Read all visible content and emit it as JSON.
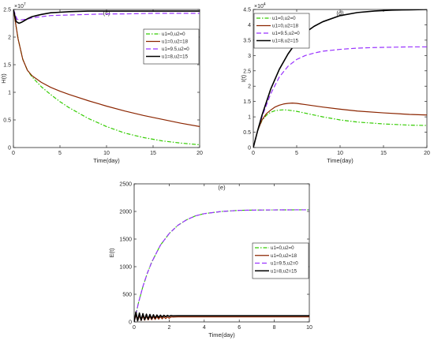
{
  "chart_data": [
    {
      "type": "line",
      "panel_label": "(c)",
      "title": "",
      "xlabel": "Time(day)",
      "ylabel": "H(t)",
      "exponent_label": "×10",
      "exponent_power": "7",
      "xlim": [
        0,
        20
      ],
      "ylim": [
        0,
        2.5
      ],
      "y_scale": 10000000,
      "xticks": [
        "0",
        "5",
        "10",
        "15",
        "20"
      ],
      "yticks": [
        "0",
        "0.5",
        "1",
        "1.5",
        "2",
        "2.5"
      ],
      "grid": false,
      "legend_position": "right",
      "legend": [
        "u1=0,u2=0",
        "u1=0,u2=18",
        "u1=9.5,u2=0",
        "u1=8,u2=15"
      ],
      "series": [
        {
          "name": "u1=0,u2=0",
          "color": "#33cc00",
          "style": "dashdot",
          "x": [
            0,
            0.5,
            1,
            1.5,
            2,
            3,
            4,
            5,
            6,
            8,
            10,
            12,
            14,
            16,
            18,
            20
          ],
          "values": [
            2.5,
            1.97,
            1.6,
            1.4,
            1.28,
            1.1,
            0.96,
            0.83,
            0.72,
            0.53,
            0.38,
            0.26,
            0.18,
            0.12,
            0.08,
            0.05
          ]
        },
        {
          "name": "u1=0,u2=18",
          "color": "#8b2500",
          "style": "solid",
          "x": [
            0,
            0.5,
            1,
            1.5,
            2,
            3,
            4,
            5,
            6,
            8,
            10,
            12,
            14,
            16,
            18,
            20
          ],
          "values": [
            2.5,
            1.97,
            1.6,
            1.4,
            1.3,
            1.18,
            1.09,
            1.02,
            0.96,
            0.85,
            0.75,
            0.66,
            0.58,
            0.51,
            0.44,
            0.38
          ]
        },
        {
          "name": "u1=9.5,u2=0",
          "color": "#9933ff",
          "style": "dashed",
          "x": [
            0,
            0.4,
            0.8,
            1.2,
            1.6,
            2,
            3,
            4,
            6,
            8,
            10,
            12,
            15,
            18,
            20
          ],
          "values": [
            2.5,
            2.32,
            2.31,
            2.32,
            2.33,
            2.35,
            2.37,
            2.39,
            2.4,
            2.41,
            2.42,
            2.42,
            2.43,
            2.43,
            2.43
          ]
        },
        {
          "name": "u1=8,u2=15",
          "color": "#000000",
          "style": "solid",
          "x": [
            0,
            0.3,
            0.6,
            0.9,
            1.2,
            1.6,
            2,
            2.5,
            3,
            4,
            5,
            6,
            8,
            10,
            12,
            15,
            18,
            20
          ],
          "values": [
            2.5,
            2.28,
            2.25,
            2.27,
            2.3,
            2.34,
            2.37,
            2.39,
            2.41,
            2.44,
            2.45,
            2.46,
            2.47,
            2.47,
            2.47,
            2.47,
            2.47,
            2.47
          ]
        }
      ]
    },
    {
      "type": "line",
      "panel_label": "(d)",
      "title": "",
      "xlabel": "Time(day)",
      "ylabel": "I(t)",
      "exponent_label": "×10",
      "exponent_power": "4",
      "xlim": [
        0,
        20
      ],
      "ylim": [
        0,
        4.5
      ],
      "y_scale": 10000,
      "xticks": [
        "0",
        "5",
        "10",
        "15",
        "20"
      ],
      "yticks": [
        "0",
        "0.5",
        "1",
        "1.5",
        "2",
        "2.5",
        "3",
        "3.5",
        "4",
        "4.5"
      ],
      "grid": false,
      "legend_position": "top-left",
      "legend": [
        "u1=0,u2=0",
        "u1=0,u2=18",
        "u1=9.5,u2=0",
        "u1=8,u2=15"
      ],
      "series": [
        {
          "name": "u1=0,u2=0",
          "color": "#33cc00",
          "style": "dashdot",
          "x": [
            0,
            0.5,
            1,
            1.5,
            2,
            2.5,
            3,
            3.5,
            4,
            5,
            6,
            8,
            10,
            12,
            15,
            18,
            20
          ],
          "values": [
            0,
            0.55,
            0.88,
            1.05,
            1.15,
            1.2,
            1.22,
            1.23,
            1.22,
            1.18,
            1.12,
            1.0,
            0.9,
            0.83,
            0.77,
            0.73,
            0.72
          ]
        },
        {
          "name": "u1=0,u2=18",
          "color": "#8b2500",
          "style": "solid",
          "x": [
            0,
            0.5,
            1,
            1.5,
            2,
            2.5,
            3,
            3.5,
            4,
            4.5,
            5,
            6,
            8,
            10,
            12,
            15,
            18,
            20
          ],
          "values": [
            0,
            0.55,
            0.9,
            1.1,
            1.22,
            1.32,
            1.38,
            1.42,
            1.44,
            1.45,
            1.44,
            1.4,
            1.32,
            1.25,
            1.19,
            1.13,
            1.08,
            1.06
          ]
        },
        {
          "name": "u1=9.5,u2=0",
          "color": "#9933ff",
          "style": "dashed",
          "x": [
            0,
            0.5,
            1,
            2,
            3,
            4,
            5,
            6,
            7,
            8,
            10,
            12,
            14,
            16,
            18,
            20
          ],
          "values": [
            0,
            0.55,
            1.0,
            1.75,
            2.3,
            2.65,
            2.87,
            3.0,
            3.08,
            3.14,
            3.2,
            3.24,
            3.26,
            3.27,
            3.28,
            3.28
          ]
        },
        {
          "name": "u1=8,u2=15",
          "color": "#000000",
          "style": "solid",
          "x": [
            0,
            0.5,
            1,
            2,
            3,
            4,
            5,
            6,
            7,
            8,
            10,
            12,
            14,
            16,
            18,
            20
          ],
          "values": [
            0,
            0.55,
            1.05,
            1.9,
            2.55,
            3.05,
            3.45,
            3.75,
            3.95,
            4.1,
            4.3,
            4.4,
            4.45,
            4.48,
            4.49,
            4.5
          ]
        }
      ]
    },
    {
      "type": "line",
      "panel_label": "(e)",
      "title": "",
      "xlabel": "Time(day)",
      "ylabel": "E(t)",
      "exponent_label": "",
      "exponent_power": "",
      "xlim": [
        0,
        10
      ],
      "ylim": [
        0,
        2500
      ],
      "y_scale": 1,
      "xticks": [
        "0",
        "2",
        "4",
        "6",
        "8",
        "10"
      ],
      "yticks": [
        "0",
        "500",
        "1000",
        "1500",
        "2000",
        "2500"
      ],
      "grid": false,
      "legend_position": "right",
      "legend": [
        "u1=0,u2=0",
        "u1=0,u2=18",
        "u1=9.5,u2=0",
        "u1=8,u2=15"
      ],
      "series": [
        {
          "name": "u1=0,u2=0",
          "color": "#33cc00",
          "style": "dashdot",
          "x": [
            0,
            0.25,
            0.5,
            0.75,
            1,
            1.5,
            2,
            2.5,
            3,
            3.5,
            4,
            5,
            6,
            7,
            8,
            9,
            10
          ],
          "values": [
            0,
            350,
            640,
            880,
            1080,
            1390,
            1600,
            1750,
            1850,
            1920,
            1960,
            2000,
            2020,
            2025,
            2028,
            2029,
            2030
          ]
        },
        {
          "name": "u1=0,u2=18",
          "color": "#8b2500",
          "style": "solid",
          "x": [
            0,
            0.1,
            0.2,
            0.3,
            0.4,
            0.5,
            0.6,
            0.7,
            0.8,
            0.9,
            1.0,
            1.1,
            1.2,
            1.3,
            1.4,
            1.5,
            1.6,
            1.7,
            1.8,
            1.9,
            2.0,
            2.1,
            2.2,
            2.5,
            3,
            4,
            5,
            6,
            7,
            8,
            9,
            10
          ],
          "values": [
            0,
            120,
            20,
            110,
            25,
            105,
            30,
            100,
            35,
            98,
            40,
            96,
            45,
            95,
            50,
            94,
            55,
            93,
            60,
            92,
            65,
            91,
            88,
            90,
            90,
            90,
            90,
            90,
            90,
            90,
            90,
            90
          ]
        },
        {
          "name": "u1=9.5,u2=0",
          "color": "#9933ff",
          "style": "dashed",
          "x": [
            0,
            0.25,
            0.5,
            0.75,
            1,
            1.5,
            2,
            2.5,
            3,
            3.5,
            4,
            5,
            6,
            7,
            8,
            9,
            10
          ],
          "values": [
            0,
            350,
            640,
            880,
            1080,
            1390,
            1600,
            1750,
            1850,
            1920,
            1960,
            2000,
            2020,
            2025,
            2028,
            2029,
            2030
          ]
        },
        {
          "name": "u1=8,u2=15",
          "color": "#000000",
          "style": "solid",
          "x": [
            0,
            0.1,
            0.2,
            0.3,
            0.4,
            0.5,
            0.6,
            0.7,
            0.8,
            0.9,
            1.0,
            1.1,
            1.2,
            1.3,
            1.4,
            1.5,
            1.6,
            1.7,
            1.8,
            1.9,
            2.0,
            2.1,
            2.2,
            2.5,
            3,
            4,
            5,
            6,
            7,
            8,
            9,
            10
          ],
          "values": [
            0,
            180,
            20,
            160,
            30,
            150,
            40,
            140,
            50,
            135,
            60,
            130,
            70,
            125,
            80,
            122,
            88,
            120,
            95,
            118,
            100,
            116,
            110,
            112,
            112,
            112,
            112,
            112,
            112,
            112,
            112,
            112
          ]
        }
      ]
    }
  ]
}
